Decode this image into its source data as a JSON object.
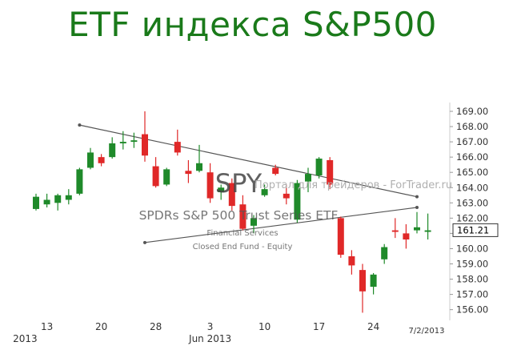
{
  "page_title": "ETF индекса S&P500",
  "watermark": "Портал для трейдеров - ForTrader.ru",
  "chart_data": {
    "type": "candlestick",
    "ticker": "SPY",
    "name": "SPDRs S&P 500 Trust Series ETF",
    "sector": "Financial Services",
    "category": "Closed End Fund - Equity",
    "date_stamp": "7/2/2013",
    "last_price": "161.21",
    "ylim": [
      155.3,
      169.6
    ],
    "y_ticks": [
      "169.00",
      "168.00",
      "167.00",
      "166.00",
      "165.00",
      "164.00",
      "163.00",
      "162.00",
      "161.00",
      "160.00",
      "159.00",
      "158.00",
      "157.00",
      "156.00"
    ],
    "x_ticks": [
      {
        "label": "13",
        "day": 1
      },
      {
        "label": "20",
        "day": 6
      },
      {
        "label": "28",
        "day": 11
      },
      {
        "label": "3",
        "day": 16
      },
      {
        "label": "10",
        "day": 21
      },
      {
        "label": "17",
        "day": 26
      },
      {
        "label": "24",
        "day": 31
      }
    ],
    "x_year_labels": [
      {
        "label": "2013",
        "day": -1
      },
      {
        "label": "Jun 2013",
        "day": 16
      }
    ],
    "candles": [
      {
        "o": 162.6,
        "h": 163.6,
        "l": 162.5,
        "c": 163.4
      },
      {
        "o": 162.9,
        "h": 163.6,
        "l": 162.7,
        "c": 163.2
      },
      {
        "o": 163.0,
        "h": 163.6,
        "l": 162.5,
        "c": 163.5
      },
      {
        "o": 163.2,
        "h": 163.9,
        "l": 162.9,
        "c": 163.5
      },
      {
        "o": 163.6,
        "h": 165.3,
        "l": 163.5,
        "c": 165.2
      },
      {
        "o": 165.3,
        "h": 166.6,
        "l": 165.2,
        "c": 166.3
      },
      {
        "o": 166.0,
        "h": 166.2,
        "l": 165.4,
        "c": 165.6
      },
      {
        "o": 166.0,
        "h": 167.3,
        "l": 165.9,
        "c": 166.9
      },
      {
        "o": 166.9,
        "h": 167.7,
        "l": 166.5,
        "c": 167.0
      },
      {
        "o": 167.0,
        "h": 167.6,
        "l": 166.6,
        "c": 167.1
      },
      {
        "o": 167.5,
        "h": 169.0,
        "l": 165.7,
        "c": 166.1
      },
      {
        "o": 165.4,
        "h": 166.0,
        "l": 164.0,
        "c": 164.1
      },
      {
        "o": 164.2,
        "h": 165.3,
        "l": 164.1,
        "c": 165.2
      },
      {
        "o": 167.0,
        "h": 167.8,
        "l": 166.1,
        "c": 166.3
      },
      {
        "o": 165.1,
        "h": 165.8,
        "l": 164.3,
        "c": 164.9
      },
      {
        "o": 165.1,
        "h": 166.8,
        "l": 165.0,
        "c": 165.6
      },
      {
        "o": 165.0,
        "h": 165.6,
        "l": 163.0,
        "c": 163.3
      },
      {
        "o": 163.7,
        "h": 164.2,
        "l": 163.2,
        "c": 164.0
      },
      {
        "o": 164.3,
        "h": 164.6,
        "l": 162.5,
        "c": 162.8
      },
      {
        "o": 162.9,
        "h": 163.5,
        "l": 161.2,
        "c": 161.3
      },
      {
        "o": 161.5,
        "h": 162.2,
        "l": 161.0,
        "c": 162.0
      },
      {
        "o": 163.5,
        "h": 164.2,
        "l": 163.4,
        "c": 163.9
      },
      {
        "o": 165.3,
        "h": 165.5,
        "l": 164.8,
        "c": 164.9
      },
      {
        "o": 163.6,
        "h": 164.2,
        "l": 162.9,
        "c": 163.3
      },
      {
        "o": 161.9,
        "h": 164.5,
        "l": 161.7,
        "c": 164.3
      },
      {
        "o": 164.4,
        "h": 165.3,
        "l": 163.7,
        "c": 164.9
      },
      {
        "o": 164.8,
        "h": 166.0,
        "l": 164.6,
        "c": 165.9
      },
      {
        "o": 165.8,
        "h": 166.0,
        "l": 163.9,
        "c": 164.2
      },
      {
        "o": 162.0,
        "h": 162.1,
        "l": 159.4,
        "c": 159.6
      },
      {
        "o": 159.5,
        "h": 159.9,
        "l": 158.3,
        "c": 158.9
      },
      {
        "o": 158.6,
        "h": 159.0,
        "l": 155.8,
        "c": 157.2
      },
      {
        "o": 157.5,
        "h": 158.4,
        "l": 157.0,
        "c": 158.3
      },
      {
        "o": 159.3,
        "h": 160.3,
        "l": 159.0,
        "c": 160.1
      },
      {
        "o": 161.2,
        "h": 162.0,
        "l": 160.7,
        "c": 161.1
      },
      {
        "o": 161.0,
        "h": 161.6,
        "l": 160.0,
        "c": 160.6
      },
      {
        "o": 161.2,
        "h": 162.4,
        "l": 161.0,
        "c": 161.4
      },
      {
        "o": 161.1,
        "h": 162.3,
        "l": 160.6,
        "c": 161.2
      }
    ],
    "trendlines": [
      {
        "from": {
          "day": 4,
          "price": 168.1
        },
        "to": {
          "day": 35,
          "price": 163.4
        }
      },
      {
        "from": {
          "day": 10,
          "price": 160.4
        },
        "to": {
          "day": 35,
          "price": 162.7
        }
      }
    ]
  }
}
